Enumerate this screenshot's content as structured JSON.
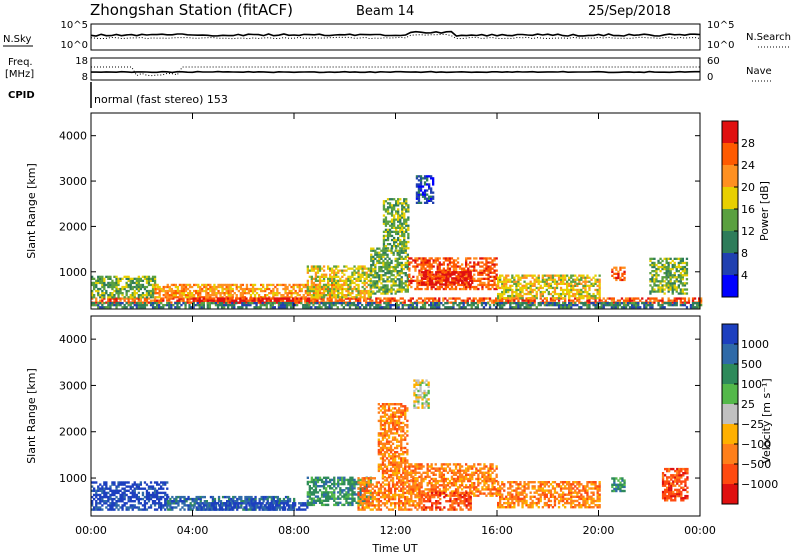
{
  "header": {
    "station": "Zhongshan Station (fitACF)",
    "beam": "Beam 14",
    "date": "25/Sep/2018"
  },
  "top_panels": {
    "nsky_label": "N.Sky",
    "nsky_ticks": [
      "10^5",
      "10^0"
    ],
    "nsearch_label": "N.Search",
    "nsearch_ticks": [
      "10^5",
      "10^0"
    ],
    "freq_label": "Freq.",
    "freq_unit": "[MHz]",
    "freq_ticks": [
      "18",
      "8"
    ],
    "nave_label": "Nave",
    "nave_ticks": [
      "60",
      "0"
    ],
    "cpid_label": "CPID",
    "cpid_text": "normal (fast stereo) 153"
  },
  "chart_data": [
    {
      "type": "heatmap",
      "name": "power",
      "ylabel": "Slant Range [km]",
      "x_ticks": [
        "00:00",
        "04:00",
        "08:00",
        "12:00",
        "16:00",
        "20:00",
        "00:00"
      ],
      "y_ticks": [
        1000,
        2000,
        3000,
        4000
      ],
      "ylim": [
        180,
        4500
      ],
      "colorbar_label": "Power [dB]",
      "colorbar_ticks": [
        "4",
        "8",
        "12",
        "16",
        "20",
        "24",
        "28"
      ],
      "colorbar_colors": [
        "#0000ff",
        "#2040b0",
        "#2e7c5a",
        "#5aa040",
        "#e8d000",
        "#ff9020",
        "#ff5a00",
        "#e01010"
      ],
      "regions": [
        {
          "t": [
            0,
            24.0
          ],
          "r": [
            300,
            420
          ],
          "level": 6
        },
        {
          "t": [
            0,
            2.5
          ],
          "r": [
            420,
            900
          ],
          "level": 3
        },
        {
          "t": [
            2.5,
            10.0
          ],
          "r": [
            420,
            700
          ],
          "level": 5
        },
        {
          "t": [
            4.0,
            8.5
          ],
          "r": [
            300,
            420
          ],
          "level": 7
        },
        {
          "t": [
            8.5,
            11.0
          ],
          "r": [
            420,
            1100
          ],
          "level": 4
        },
        {
          "t": [
            11.0,
            12.5
          ],
          "r": [
            500,
            1500
          ],
          "level": 3
        },
        {
          "t": [
            11.5,
            12.5
          ],
          "r": [
            1500,
            2600
          ],
          "level": 3
        },
        {
          "t": [
            12.5,
            16.0
          ],
          "r": [
            600,
            1300
          ],
          "level": 6
        },
        {
          "t": [
            13.0,
            15.0
          ],
          "r": [
            700,
            1000
          ],
          "level": 7
        },
        {
          "t": [
            16.0,
            20.0
          ],
          "r": [
            400,
            900
          ],
          "level": 4
        },
        {
          "t": [
            20.5,
            21.0
          ],
          "r": [
            800,
            1100
          ],
          "level": 6
        },
        {
          "t": [
            22.0,
            23.5
          ],
          "r": [
            500,
            1300
          ],
          "level": 3
        },
        {
          "t": [
            12.8,
            13.5
          ],
          "r": [
            2500,
            3100
          ],
          "level": 1
        },
        {
          "t": [
            0,
            24.0
          ],
          "r": [
            200,
            300
          ],
          "level": 2
        }
      ]
    },
    {
      "type": "heatmap",
      "name": "velocity",
      "ylabel": "Slant Range [km]",
      "xlabel": "Time UT",
      "x_ticks": [
        "00:00",
        "04:00",
        "08:00",
        "12:00",
        "16:00",
        "20:00",
        "00:00"
      ],
      "y_ticks": [
        1000,
        2000,
        3000,
        4000
      ],
      "ylim": [
        180,
        4500
      ],
      "colorbar_label": "Velocity [m s⁻¹]",
      "colorbar_ticks": [
        "1000",
        "500",
        "100",
        "25",
        "−25",
        "−100",
        "−500",
        "−1000"
      ],
      "colorbar_colors": [
        "#1c3fbf",
        "#2f6aa8",
        "#2e8a5a",
        "#54b84a",
        "#c0c0c0",
        "#ffb000",
        "#ff7f1a",
        "#ff4a10",
        "#e01010"
      ],
      "regions": [
        {
          "t": [
            0,
            3.0
          ],
          "r": [
            300,
            900
          ],
          "level": 0
        },
        {
          "t": [
            3.0,
            8.0
          ],
          "r": [
            300,
            600
          ],
          "level": 1
        },
        {
          "t": [
            4.0,
            8.5
          ],
          "r": [
            300,
            450
          ],
          "level": 0
        },
        {
          "t": [
            8.5,
            11.0
          ],
          "r": [
            400,
            1000
          ],
          "level": 2
        },
        {
          "t": [
            10.5,
            13.0
          ],
          "r": [
            300,
            1000
          ],
          "level": 6
        },
        {
          "t": [
            11.3,
            12.5
          ],
          "r": [
            1000,
            2600
          ],
          "level": 6
        },
        {
          "t": [
            12.5,
            16.0
          ],
          "r": [
            600,
            1300
          ],
          "level": 6
        },
        {
          "t": [
            13.0,
            15.0
          ],
          "r": [
            300,
            700
          ],
          "level": 7
        },
        {
          "t": [
            16.0,
            20.0
          ],
          "r": [
            350,
            900
          ],
          "level": 6
        },
        {
          "t": [
            20.5,
            21.0
          ],
          "r": [
            700,
            1000
          ],
          "level": 2
        },
        {
          "t": [
            22.5,
            23.5
          ],
          "r": [
            500,
            1200
          ],
          "level": 7
        },
        {
          "t": [
            12.7,
            13.3
          ],
          "r": [
            2500,
            3100
          ],
          "level": 4
        }
      ]
    }
  ],
  "time_axis_label": "Time UT"
}
